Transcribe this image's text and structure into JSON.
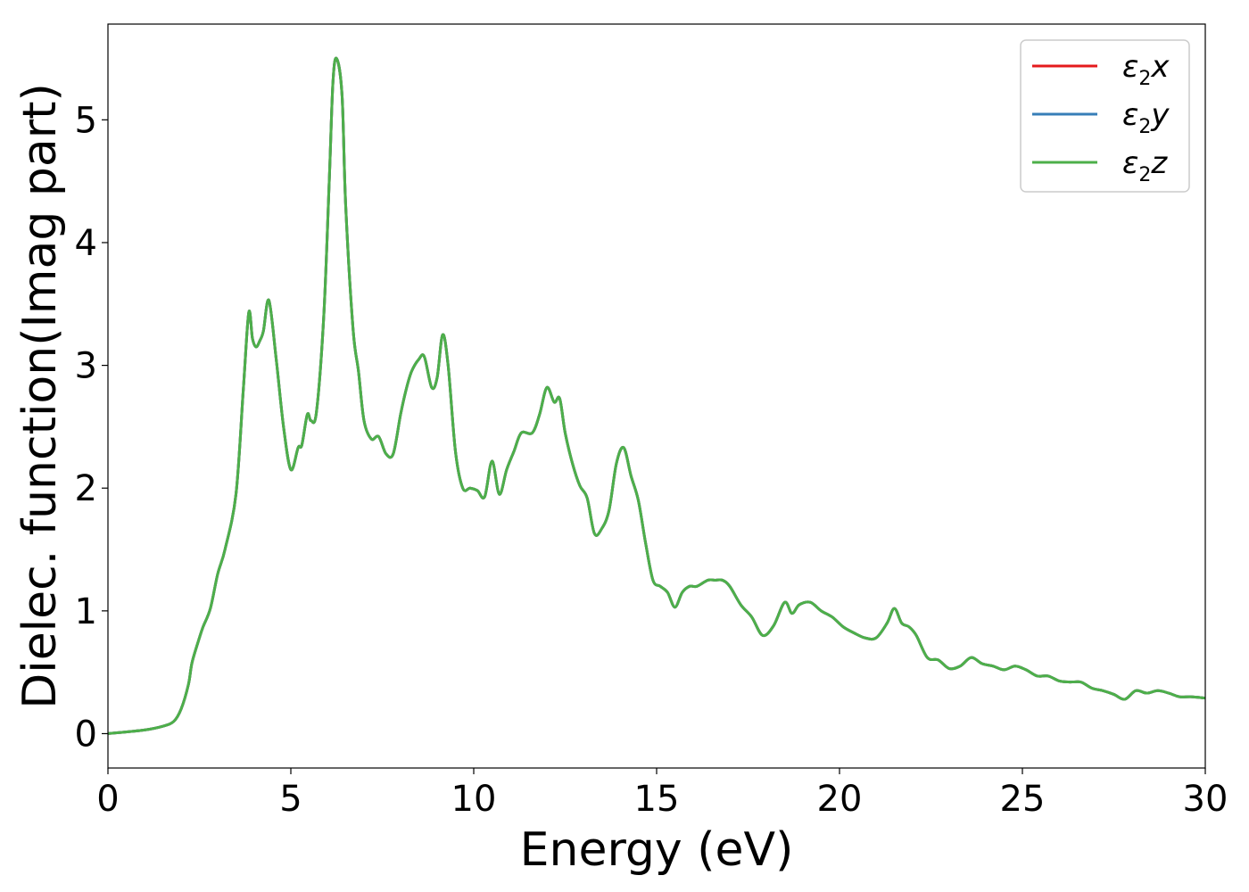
{
  "chart_data": {
    "type": "line",
    "title": "",
    "xlabel": "Energy (eV)",
    "ylabel": "Dielec. function(Imag part)",
    "xlim": [
      0,
      30
    ],
    "ylim": [
      -0.28,
      5.78
    ],
    "xticks": [
      0,
      5,
      10,
      15,
      20,
      25,
      30
    ],
    "yticks": [
      0,
      1,
      2,
      3,
      4,
      5
    ],
    "grid": false,
    "legend_position": "top-right",
    "series": [
      {
        "name": "ε2x",
        "legend": {
          "base": "ε",
          "sub": "2",
          "tail": "x"
        },
        "color": "#e41a1c",
        "points": [
          [
            0,
            0.0
          ],
          [
            1.0,
            0.03
          ],
          [
            1.5,
            0.06
          ],
          [
            1.8,
            0.1
          ],
          [
            2.0,
            0.2
          ],
          [
            2.2,
            0.4
          ],
          [
            2.3,
            0.58
          ],
          [
            2.5,
            0.78
          ],
          [
            2.6,
            0.87
          ],
          [
            2.8,
            1.02
          ],
          [
            3.0,
            1.3
          ],
          [
            3.2,
            1.5
          ],
          [
            3.5,
            1.95
          ],
          [
            3.7,
            2.8
          ],
          [
            3.85,
            3.43
          ],
          [
            3.95,
            3.22
          ],
          [
            4.05,
            3.15
          ],
          [
            4.15,
            3.2
          ],
          [
            4.25,
            3.28
          ],
          [
            4.4,
            3.53
          ],
          [
            4.6,
            3.05
          ],
          [
            4.8,
            2.5
          ],
          [
            5.0,
            2.15
          ],
          [
            5.2,
            2.33
          ],
          [
            5.3,
            2.35
          ],
          [
            5.45,
            2.6
          ],
          [
            5.55,
            2.55
          ],
          [
            5.7,
            2.62
          ],
          [
            5.9,
            3.4
          ],
          [
            6.05,
            4.5
          ],
          [
            6.15,
            5.3
          ],
          [
            6.25,
            5.5
          ],
          [
            6.4,
            5.2
          ],
          [
            6.5,
            4.3
          ],
          [
            6.7,
            3.3
          ],
          [
            6.85,
            2.95
          ],
          [
            7.0,
            2.55
          ],
          [
            7.2,
            2.4
          ],
          [
            7.4,
            2.42
          ],
          [
            7.6,
            2.28
          ],
          [
            7.8,
            2.28
          ],
          [
            8.0,
            2.6
          ],
          [
            8.15,
            2.8
          ],
          [
            8.3,
            2.95
          ],
          [
            8.5,
            3.05
          ],
          [
            8.65,
            3.07
          ],
          [
            8.85,
            2.82
          ],
          [
            9.0,
            2.9
          ],
          [
            9.15,
            3.25
          ],
          [
            9.3,
            3.0
          ],
          [
            9.5,
            2.3
          ],
          [
            9.7,
            2.0
          ],
          [
            9.9,
            2.0
          ],
          [
            10.1,
            1.98
          ],
          [
            10.3,
            1.93
          ],
          [
            10.5,
            2.22
          ],
          [
            10.7,
            1.95
          ],
          [
            10.9,
            2.15
          ],
          [
            11.1,
            2.3
          ],
          [
            11.3,
            2.45
          ],
          [
            11.6,
            2.45
          ],
          [
            11.8,
            2.6
          ],
          [
            12.0,
            2.82
          ],
          [
            12.2,
            2.7
          ],
          [
            12.35,
            2.73
          ],
          [
            12.5,
            2.45
          ],
          [
            12.7,
            2.2
          ],
          [
            12.9,
            2.02
          ],
          [
            13.1,
            1.92
          ],
          [
            13.3,
            1.63
          ],
          [
            13.5,
            1.67
          ],
          [
            13.7,
            1.82
          ],
          [
            13.9,
            2.2
          ],
          [
            14.1,
            2.33
          ],
          [
            14.3,
            2.1
          ],
          [
            14.5,
            1.9
          ],
          [
            14.7,
            1.55
          ],
          [
            14.9,
            1.25
          ],
          [
            15.1,
            1.2
          ],
          [
            15.3,
            1.15
          ],
          [
            15.5,
            1.03
          ],
          [
            15.7,
            1.15
          ],
          [
            15.9,
            1.2
          ],
          [
            16.1,
            1.2
          ],
          [
            16.4,
            1.25
          ],
          [
            16.6,
            1.25
          ],
          [
            16.8,
            1.25
          ],
          [
            17.0,
            1.2
          ],
          [
            17.3,
            1.05
          ],
          [
            17.6,
            0.95
          ],
          [
            17.9,
            0.8
          ],
          [
            18.2,
            0.88
          ],
          [
            18.5,
            1.07
          ],
          [
            18.7,
            0.98
          ],
          [
            18.9,
            1.05
          ],
          [
            19.2,
            1.07
          ],
          [
            19.5,
            1.0
          ],
          [
            19.8,
            0.95
          ],
          [
            20.1,
            0.87
          ],
          [
            20.4,
            0.82
          ],
          [
            20.7,
            0.78
          ],
          [
            21.0,
            0.78
          ],
          [
            21.3,
            0.9
          ],
          [
            21.5,
            1.02
          ],
          [
            21.7,
            0.9
          ],
          [
            21.9,
            0.87
          ],
          [
            22.1,
            0.8
          ],
          [
            22.4,
            0.62
          ],
          [
            22.7,
            0.6
          ],
          [
            23.0,
            0.53
          ],
          [
            23.3,
            0.55
          ],
          [
            23.6,
            0.62
          ],
          [
            23.9,
            0.57
          ],
          [
            24.2,
            0.55
          ],
          [
            24.5,
            0.52
          ],
          [
            24.8,
            0.55
          ],
          [
            25.1,
            0.52
          ],
          [
            25.4,
            0.47
          ],
          [
            25.7,
            0.47
          ],
          [
            26.0,
            0.43
          ],
          [
            26.3,
            0.42
          ],
          [
            26.6,
            0.42
          ],
          [
            26.9,
            0.37
          ],
          [
            27.2,
            0.35
          ],
          [
            27.5,
            0.32
          ],
          [
            27.8,
            0.28
          ],
          [
            28.1,
            0.35
          ],
          [
            28.4,
            0.33
          ],
          [
            28.7,
            0.35
          ],
          [
            29.0,
            0.33
          ],
          [
            29.3,
            0.3
          ],
          [
            29.6,
            0.3
          ],
          [
            30.0,
            0.29
          ]
        ]
      },
      {
        "name": "ε2y",
        "legend": {
          "base": "ε",
          "sub": "2",
          "tail": "y"
        },
        "color": "#377eb8",
        "same_as": 0
      },
      {
        "name": "ε2z",
        "legend": {
          "base": "ε",
          "sub": "2",
          "tail": "z"
        },
        "color": "#4daf4a",
        "same_as": 0
      }
    ]
  }
}
